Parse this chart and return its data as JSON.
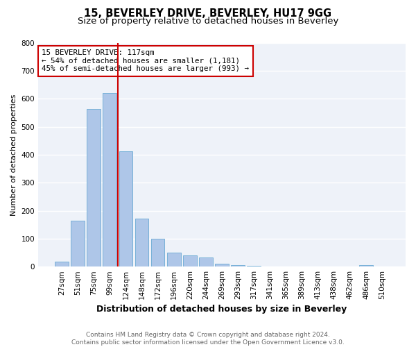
{
  "title": "15, BEVERLEY DRIVE, BEVERLEY, HU17 9GG",
  "subtitle": "Size of property relative to detached houses in Beverley",
  "xlabel": "Distribution of detached houses by size in Beverley",
  "ylabel": "Number of detached properties",
  "bar_labels": [
    "27sqm",
    "51sqm",
    "75sqm",
    "99sqm",
    "124sqm",
    "148sqm",
    "172sqm",
    "196sqm",
    "220sqm",
    "244sqm",
    "269sqm",
    "293sqm",
    "317sqm",
    "341sqm",
    "365sqm",
    "389sqm",
    "413sqm",
    "438sqm",
    "462sqm",
    "486sqm",
    "510sqm"
  ],
  "bar_heights": [
    18,
    165,
    563,
    620,
    413,
    172,
    100,
    50,
    40,
    32,
    10,
    5,
    2,
    0,
    1,
    0,
    0,
    0,
    0,
    5,
    0
  ],
  "bar_color": "#aec6e8",
  "bar_edge_color": "#6aaad4",
  "vline_color": "#cc0000",
  "vline_x_index": 3.5,
  "annotation_title": "15 BEVERLEY DRIVE: 117sqm",
  "annotation_line1": "← 54% of detached houses are smaller (1,181)",
  "annotation_line2": "45% of semi-detached houses are larger (993) →",
  "annotation_box_edgecolor": "#cc0000",
  "ylim": [
    0,
    800
  ],
  "yticks": [
    0,
    100,
    200,
    300,
    400,
    500,
    600,
    700,
    800
  ],
  "plot_bg_color": "#eef2f9",
  "footer_line1": "Contains HM Land Registry data © Crown copyright and database right 2024.",
  "footer_line2": "Contains public sector information licensed under the Open Government Licence v3.0.",
  "title_fontsize": 10.5,
  "subtitle_fontsize": 9.5,
  "ylabel_fontsize": 8,
  "xlabel_fontsize": 9,
  "tick_fontsize": 7.5,
  "footer_fontsize": 6.5,
  "annot_fontsize": 7.8
}
